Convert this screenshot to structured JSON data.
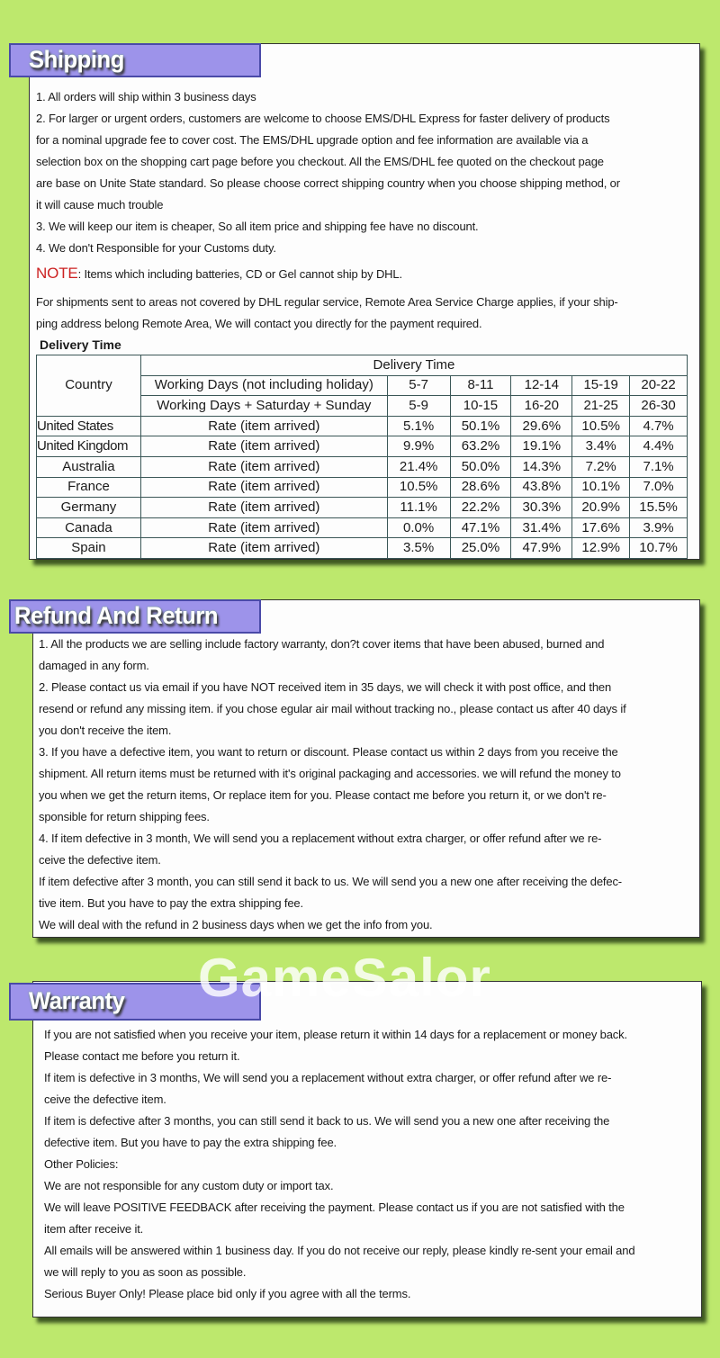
{
  "shipping": {
    "title": "Shipping",
    "lines": [
      "1. All orders will ship within 3 business days",
      "2. For larger or urgent orders, customers are welcome to choose EMS/DHL Express for faster delivery of products",
      "for a nominal upgrade fee to cover cost. The EMS/DHL upgrade option and fee information are available via a",
      "selection box on the shopping cart page before you checkout. All the EMS/DHL fee quoted on the checkout page",
      "are base on Unite State standard. So please choose correct shipping country when you choose shipping method, or",
      "it will cause much trouble",
      "3. We will keep our item is cheaper, So all item price and shipping fee have no discount.",
      "4. We don't Responsible for your Customs duty."
    ],
    "note_label": "NOTE",
    "note_text": ": Items which including batteries, CD or Gel cannot ship by DHL.",
    "remote_lines": [
      "For shipments sent to areas not covered by DHL regular service, Remote Area Service Charge applies, if your ship-",
      "ping address belong Remote Area, We will contact you directly for the payment required."
    ],
    "note_color": "#cc2222"
  },
  "delivery_table": {
    "title": "Delivery Time",
    "country_header": "Country",
    "group_header": "Delivery Time",
    "working_days_label": "Working Days (not including holiday)",
    "working_days": [
      "5-7",
      "8-11",
      "12-14",
      "15-19",
      "20-22"
    ],
    "calendar_days_label": "Working Days + Saturday + Sunday",
    "calendar_days": [
      "5-9",
      "10-15",
      "16-20",
      "21-25",
      "26-30"
    ],
    "rows": [
      {
        "country": "United States",
        "label": "Rate (item arrived)",
        "values": [
          "5.1%",
          "50.1%",
          "29.6%",
          "10.5%",
          "4.7%"
        ]
      },
      {
        "country": "United Kingdom",
        "label": "Rate (item arrived)",
        "values": [
          "9.9%",
          "63.2%",
          "19.1%",
          "3.4%",
          "4.4%"
        ]
      },
      {
        "country": "Australia",
        "label": "Rate (item arrived)",
        "values": [
          "21.4%",
          "50.0%",
          "14.3%",
          "7.2%",
          "7.1%"
        ]
      },
      {
        "country": "France",
        "label": "Rate (item arrived)",
        "values": [
          "10.5%",
          "28.6%",
          "43.8%",
          "10.1%",
          "7.0%"
        ]
      },
      {
        "country": "Germany",
        "label": "Rate (item arrived)",
        "values": [
          "11.1%",
          "22.2%",
          "30.3%",
          "20.9%",
          "15.5%"
        ]
      },
      {
        "country": "Canada",
        "label": "Rate (item arrived)",
        "values": [
          "0.0%",
          "47.1%",
          "31.4%",
          "17.6%",
          "3.9%"
        ]
      },
      {
        "country": "Spain",
        "label": "Rate (item arrived)",
        "values": [
          "3.5%",
          "25.0%",
          "47.9%",
          "12.9%",
          "10.7%"
        ]
      }
    ]
  },
  "refund": {
    "title": "Refund And Return",
    "lines": [
      "1. All the products we are selling include factory warranty, don?t cover items that have been abused, burned and",
      "damaged in any form.",
      "2. Please contact us via email if you have NOT received item in 35 days, we will check it with post office, and then",
      "resend or refund any missing item. if you chose egular air mail without tracking no., please contact us after 40 days if",
      "you don't receive the item.",
      "3. If you have a defective item, you want to return or discount. Please contact us within 2 days from you receive the",
      "shipment. All return items must be returned with it's original packaging and accessories. we will refund the money to",
      "you when we get the return items, Or replace item for you. Please contact me before you return it, or we don't re-",
      "sponsible for return shipping fees.",
      "4. If item defective in 3 month, We will send you a replacement without extra charger, or offer refund after we re-",
      "ceive the defective item.",
      "If item defective after 3 month, you can still send it back to us. We will send you a new one after receiving the defec-",
      "tive item. But you have to pay the extra shipping fee.",
      "We will deal with the refund in 2 business days when we get the info from you."
    ]
  },
  "warranty": {
    "title": "Warranty",
    "lines": [
      "If you are not satisfied when you receive your item, please return it within 14 days for a replacement or money back.",
      "Please contact me before you return it.",
      "If item is defective in 3 months, We will send you a replacement without extra charger, or offer refund after we re-",
      "ceive the defective item.",
      "If item is defective after 3 months, you can still send it back to us. We will send you a new one after receiving the",
      "defective item. But you have to pay the extra shipping fee.",
      "Other Policies:",
      "We are not responsible for any custom duty or import tax.",
      "We will leave POSITIVE FEEDBACK after receiving the payment. Please contact us if you are not satisfied with the",
      "item after receive it.",
      "All emails will be answered within 1 business day. If you do not receive our reply, please kindly re-sent your email and",
      "we will reply to you as soon as possible.",
      "Serious Buyer Only! Please place bid only if you agree with all the terms."
    ]
  },
  "watermark": "GameSalor",
  "colors": {
    "background": "#bde86d",
    "tab": "#9d93ea",
    "tab_border": "#4a4aa8"
  }
}
